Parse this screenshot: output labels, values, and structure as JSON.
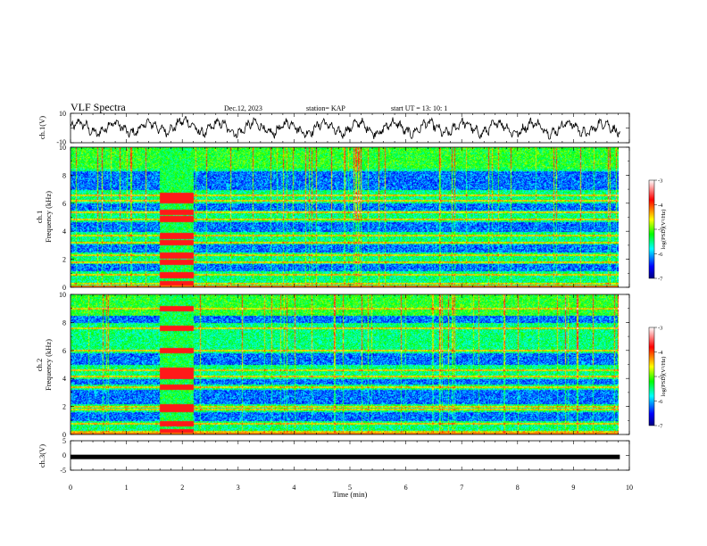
{
  "header": {
    "title": "VLF Spectra",
    "date": "Dec.12, 2023",
    "station": "station= KAP",
    "start": "start  UT =   13: 10: 1"
  },
  "chart_data": [
    {
      "type": "line",
      "panel": "ch1-waveform",
      "ylabel": "ch.1(V)",
      "ylim": [
        -10,
        10
      ],
      "yticks": [
        "10",
        "-10"
      ],
      "xlim": [
        0,
        9.83
      ]
    },
    {
      "type": "heatmap",
      "panel": "ch1-spectrogram",
      "ylabel_line1": "ch.1",
      "ylabel_line2": "Frequency (kHz)",
      "ylim": [
        0,
        10
      ],
      "yticks": [
        "0",
        "2",
        "4",
        "6",
        "8",
        "10"
      ],
      "bright_bands_khz": [
        6.6,
        6.2,
        5.4,
        4.9,
        3.7,
        3.2,
        2.3,
        1.8,
        0.9,
        0.3
      ],
      "dark_bands_khz": [
        [
          7.0,
          8.3
        ],
        [
          5.5,
          6.0
        ],
        [
          4.0,
          4.7
        ],
        [
          2.5,
          3.1
        ],
        [
          1.2,
          1.7
        ]
      ],
      "burst_window_min": [
        1.6,
        2.2
      ],
      "colorbar": {
        "label": "log(PSD)(V²/Hz)",
        "ticks": [
          "-3",
          "-4",
          "-5",
          "-6",
          "-7"
        ],
        "range": [
          -7,
          -3
        ]
      }
    },
    {
      "type": "heatmap",
      "panel": "ch2-spectrogram",
      "ylabel_line1": "ch.2",
      "ylabel_line2": "Frequency (kHz)",
      "ylim": [
        0,
        10
      ],
      "yticks": [
        "0",
        "2",
        "4",
        "6",
        "8",
        "10"
      ],
      "bright_bands_khz": [
        9.0,
        7.6,
        6.0,
        4.6,
        4.2,
        3.4,
        2.0,
        1.8,
        0.8,
        0.2
      ],
      "dark_bands_khz": [
        [
          8.0,
          8.8
        ],
        [
          5.0,
          5.8
        ],
        [
          3.6,
          4.0
        ],
        [
          2.2,
          3.2
        ],
        [
          1.0,
          1.6
        ]
      ],
      "burst_window_min": [
        1.6,
        2.2
      ],
      "colorbar": {
        "label": "log(PSD)(V²/Hz)",
        "ticks": [
          "-3",
          "-4",
          "-5",
          "-6",
          "-7"
        ],
        "range": [
          -7,
          -3
        ]
      }
    },
    {
      "type": "line",
      "panel": "ch3-signal",
      "ylabel": "ch.3(V)",
      "ylim": [
        -5,
        5
      ],
      "yticks": [
        "5",
        "0",
        "-5"
      ],
      "level_v": -0.5,
      "xlim": [
        0,
        9.83
      ]
    }
  ],
  "x_axis": {
    "label": "Time (min)",
    "range": [
      0,
      10
    ],
    "ticks": [
      "0",
      "1",
      "2",
      "3",
      "4",
      "5",
      "6",
      "7",
      "8",
      "9",
      "10"
    ]
  },
  "colors": {
    "colormap": [
      "#ffffff",
      "#ff0000",
      "#ffff00",
      "#00ff00",
      "#00ffff",
      "#0000ff",
      "#000080"
    ],
    "line": "#000000"
  }
}
